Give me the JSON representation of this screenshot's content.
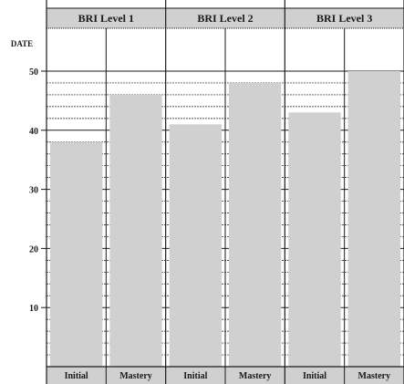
{
  "chart_data": {
    "type": "bar",
    "ylabel": "DATE",
    "ylim": [
      0,
      55
    ],
    "yticks": [
      10,
      20,
      30,
      40,
      50
    ],
    "grid": "dashed lines at every unit above each bar",
    "groups": [
      {
        "label": "BRI Level 1",
        "categories": [
          "Initial",
          "Mastery"
        ],
        "values": [
          38,
          46
        ]
      },
      {
        "label": "BRI Level 2",
        "categories": [
          "Initial",
          "Mastery"
        ],
        "values": [
          41,
          48
        ]
      },
      {
        "label": "BRI Level 3",
        "categories": [
          "Initial",
          "Mastery"
        ],
        "values": [
          43,
          50
        ]
      }
    ],
    "bar_color": "#d0d0d0",
    "header_color": "#d0d0d0",
    "line_color": "#1a1a1a"
  }
}
